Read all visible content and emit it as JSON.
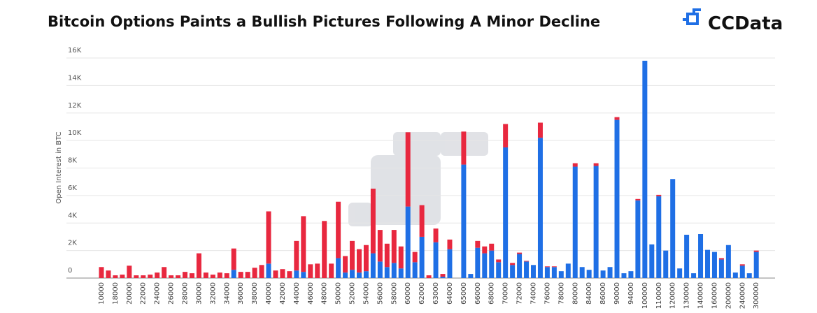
{
  "chart_data": {
    "type": "stacked_bar",
    "title": "Bitcoin Options Paints a Bullish Pictures Following A Minor Decline",
    "logo": "CCData",
    "y_label": "Open Interest in BTC",
    "categories": [
      "10000",
      null,
      "18000",
      null,
      "20000",
      null,
      "22000",
      null,
      "24000",
      null,
      "26000",
      null,
      "28000",
      null,
      "30000",
      null,
      "32000",
      null,
      "34000",
      null,
      "36000",
      null,
      "38000",
      null,
      "40000",
      null,
      "42000",
      null,
      "44000",
      null,
      "46000",
      null,
      "48000",
      null,
      "50000",
      null,
      "52000",
      null,
      "54000",
      null,
      "56000",
      null,
      "58000",
      null,
      "60000",
      null,
      "62000",
      null,
      "63000",
      null,
      "64000",
      null,
      "65000",
      null,
      "66000",
      null,
      "68000",
      null,
      "70000",
      null,
      "72000",
      null,
      "74000",
      null,
      "76000",
      null,
      "78000",
      null,
      "80000",
      null,
      "84000",
      null,
      "86000",
      null,
      "90000",
      null,
      "94000",
      null,
      "100000",
      null,
      "110000",
      null,
      "120000",
      null,
      "130000",
      null,
      "140000",
      null,
      "160000",
      null,
      "200000",
      null,
      "240000",
      null,
      "300000"
    ],
    "series": [
      {
        "color": "#1f6fe5",
        "values": [
          0,
          0,
          0,
          0,
          0,
          0,
          0,
          0,
          0,
          0,
          0,
          0,
          0,
          0,
          0,
          0,
          0,
          0,
          0,
          600,
          0,
          0,
          0,
          0,
          1050,
          0,
          0,
          0,
          550,
          450,
          0,
          0,
          0,
          0,
          1450,
          400,
          600,
          400,
          500,
          1800,
          1200,
          800,
          1100,
          700,
          5200,
          1150,
          3000,
          0,
          2600,
          100,
          2100,
          0,
          8250,
          300,
          2200,
          1800,
          2000,
          1150,
          9500,
          950,
          1750,
          1200,
          950,
          10200,
          800,
          800,
          500,
          1050,
          8100,
          800,
          600,
          8150,
          550,
          800,
          11500,
          350,
          500,
          5650,
          15800,
          2450,
          5950,
          2000,
          7200,
          700,
          3150,
          350,
          3200,
          2050,
          1900,
          1350,
          2400,
          400,
          900,
          350,
          1900
        ]
      },
      {
        "color": "#e8283f",
        "values": [
          800,
          550,
          200,
          250,
          900,
          200,
          200,
          250,
          400,
          800,
          200,
          200,
          450,
          350,
          1800,
          400,
          250,
          400,
          350,
          1550,
          450,
          450,
          750,
          950,
          3800,
          550,
          650,
          500,
          2150,
          4050,
          1000,
          1050,
          4150,
          1050,
          4100,
          1200,
          2100,
          1700,
          1900,
          4700,
          2300,
          1700,
          2400,
          1600,
          5400,
          750,
          2300,
          200,
          1000,
          200,
          700,
          0,
          2400,
          0,
          500,
          500,
          500,
          200,
          1700,
          150,
          100,
          50,
          0,
          1100,
          50,
          50,
          0,
          0,
          250,
          0,
          0,
          200,
          0,
          0,
          200,
          0,
          0,
          100,
          0,
          0,
          100,
          0,
          0,
          0,
          0,
          0,
          0,
          0,
          0,
          100,
          0,
          0,
          100,
          0,
          100
        ]
      }
    ],
    "ylim": [
      0,
      16000
    ],
    "yticks": [
      0,
      {
        "value": 2000,
        "label": "2K"
      },
      {
        "value": 4000,
        "label": "4K"
      },
      {
        "value": 6000,
        "label": "6K"
      },
      {
        "value": 8000,
        "label": "8K"
      },
      {
        "value": 10000,
        "label": "10K"
      },
      {
        "value": 12000,
        "label": "12K"
      },
      {
        "value": 14000,
        "label": "14K"
      },
      {
        "value": 16000,
        "label": "16K"
      }
    ],
    "grid": true
  }
}
